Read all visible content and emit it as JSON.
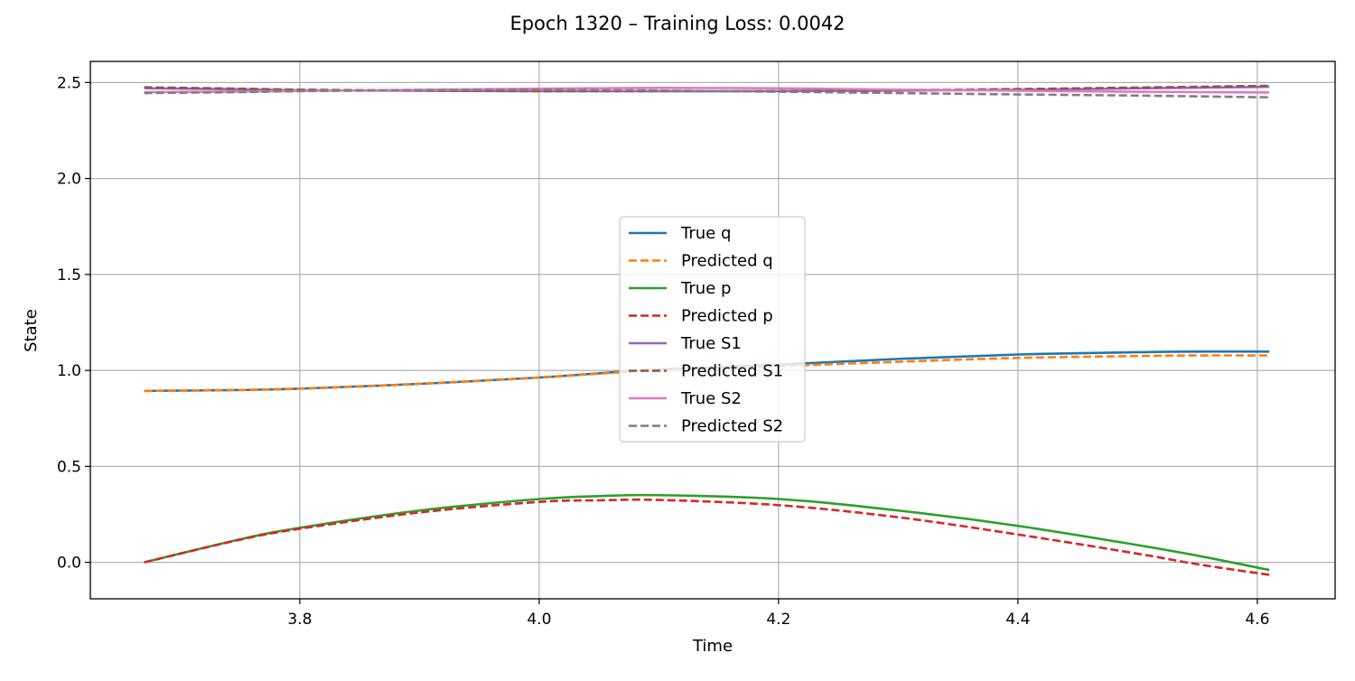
{
  "chart_data": {
    "type": "line",
    "title": "Epoch 1320 – Training Loss: 0.0042",
    "xlabel": "Time",
    "ylabel": "State",
    "xlim": [
      3.625,
      4.665
    ],
    "ylim": [
      -0.19,
      2.61
    ],
    "xticks": [
      3.8,
      4.0,
      4.2,
      4.4,
      4.6
    ],
    "xtick_labels": [
      "3.8",
      "4.0",
      "4.2",
      "4.4",
      "4.6"
    ],
    "yticks": [
      0.0,
      0.5,
      1.0,
      1.5,
      2.0,
      2.5
    ],
    "ytick_labels": [
      "0.0",
      "0.5",
      "1.0",
      "1.5",
      "2.0",
      "2.5"
    ],
    "grid": true,
    "legend_position": "center",
    "x": [
      3.67,
      3.75,
      3.8,
      3.9,
      4.0,
      4.05,
      4.1,
      4.2,
      4.3,
      4.4,
      4.5,
      4.55,
      4.61
    ],
    "series": [
      {
        "name": "True q",
        "color": "#1f77b4",
        "dash": "solid",
        "values": [
          0.893,
          0.898,
          0.905,
          0.93,
          0.963,
          0.985,
          1.005,
          1.03,
          1.06,
          1.083,
          1.095,
          1.098,
          1.098
        ]
      },
      {
        "name": "Predicted q",
        "color": "#ff7f0e",
        "dash": "dashed",
        "values": [
          0.893,
          0.898,
          0.905,
          0.93,
          0.963,
          0.983,
          1.0,
          1.022,
          1.045,
          1.065,
          1.075,
          1.078,
          1.078
        ]
      },
      {
        "name": "True p",
        "color": "#2ca02c",
        "dash": "solid",
        "values": [
          0.0,
          0.12,
          0.18,
          0.27,
          0.33,
          0.345,
          0.35,
          0.33,
          0.27,
          0.19,
          0.09,
          0.035,
          -0.04
        ]
      },
      {
        "name": "Predicted p",
        "color": "#d62728",
        "dash": "dashed",
        "values": [
          0.0,
          0.118,
          0.175,
          0.26,
          0.315,
          0.323,
          0.325,
          0.298,
          0.235,
          0.145,
          0.045,
          -0.01,
          -0.065
        ]
      },
      {
        "name": "True S1",
        "color": "#9467bd",
        "dash": "solid",
        "values": [
          2.47,
          2.465,
          2.46,
          2.457,
          2.455,
          2.455,
          2.455,
          2.455,
          2.458,
          2.462,
          2.47,
          2.473,
          2.478
        ]
      },
      {
        "name": "Predicted S1",
        "color": "#8c564b",
        "dash": "dashed",
        "values": [
          2.475,
          2.468,
          2.463,
          2.458,
          2.455,
          2.455,
          2.455,
          2.456,
          2.46,
          2.466,
          2.474,
          2.478,
          2.483
        ]
      },
      {
        "name": "True S2",
        "color": "#e377c2",
        "dash": "solid",
        "values": [
          2.45,
          2.453,
          2.456,
          2.462,
          2.468,
          2.47,
          2.472,
          2.47,
          2.463,
          2.457,
          2.452,
          2.45,
          2.448
        ]
      },
      {
        "name": "Predicted S2",
        "color": "#7f7f7f",
        "dash": "dashed",
        "values": [
          2.445,
          2.45,
          2.455,
          2.46,
          2.462,
          2.46,
          2.458,
          2.452,
          2.445,
          2.438,
          2.432,
          2.428,
          2.423
        ]
      }
    ]
  }
}
